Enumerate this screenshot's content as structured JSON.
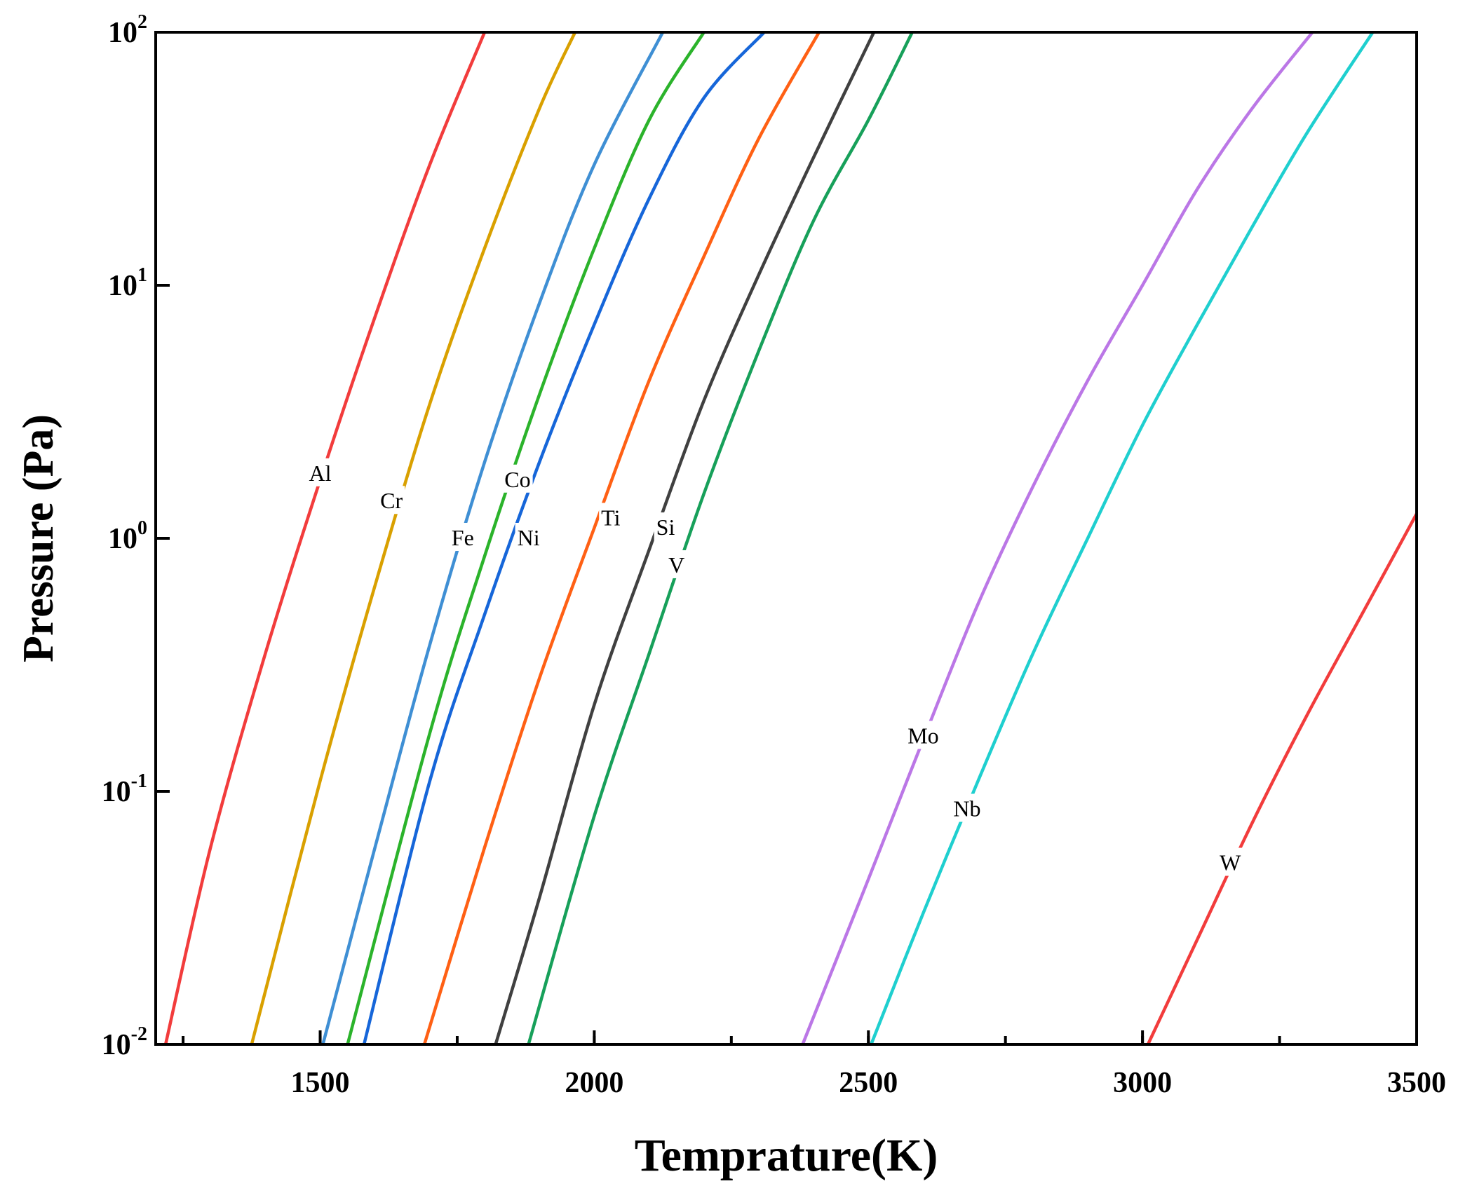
{
  "chart_data": {
    "type": "line",
    "title": "",
    "xlabel": "Temprature(K)",
    "ylabel": "Pressure (Pa)",
    "x_scale": "linear",
    "y_scale": "log",
    "xlim": [
      1200,
      3500
    ],
    "ylim": [
      0.01,
      100
    ],
    "x_ticks": [
      {
        "value": 1500,
        "label": "1500"
      },
      {
        "value": 2000,
        "label": "2000"
      },
      {
        "value": 2500,
        "label": "2500"
      },
      {
        "value": 3000,
        "label": "3000"
      },
      {
        "value": 3500,
        "label": "3500"
      }
    ],
    "y_ticks": [
      {
        "value": 0.01,
        "base": "10",
        "exp": "-2"
      },
      {
        "value": 0.1,
        "base": "10",
        "exp": "-1"
      },
      {
        "value": 1,
        "base": "10",
        "exp": "0"
      },
      {
        "value": 10,
        "base": "10",
        "exp": "1"
      },
      {
        "value": 100,
        "base": "10",
        "exp": "2"
      }
    ],
    "grid": false,
    "legend": "inline labels on curves",
    "series": [
      {
        "name": "Al",
        "color": "#f23c3c",
        "label_at": [
          1500,
          1.8
        ],
        "points": [
          [
            1218,
            0.01
          ],
          [
            1300,
            0.06
          ],
          [
            1400,
            0.35
          ],
          [
            1500,
            1.7
          ],
          [
            1600,
            7.5
          ],
          [
            1700,
            30
          ],
          [
            1800,
            100
          ]
        ]
      },
      {
        "name": "Cr",
        "color": "#d9a000",
        "label_at": [
          1630,
          1.4
        ],
        "points": [
          [
            1375,
            0.01
          ],
          [
            1500,
            0.11
          ],
          [
            1600,
            0.65
          ],
          [
            1700,
            3.4
          ],
          [
            1800,
            14
          ],
          [
            1900,
            50
          ],
          [
            1965,
            100
          ]
        ]
      },
      {
        "name": "Fe",
        "color": "#3f8fd4",
        "label_at": [
          1760,
          1.0
        ],
        "points": [
          [
            1505,
            0.01
          ],
          [
            1600,
            0.06
          ],
          [
            1700,
            0.38
          ],
          [
            1800,
            2
          ],
          [
            1900,
            8.5
          ],
          [
            2000,
            30
          ],
          [
            2125,
            100
          ]
        ]
      },
      {
        "name": "Co",
        "color": "#2bb32b",
        "label_at": [
          1860,
          1.7
        ],
        "points": [
          [
            1550,
            0.01
          ],
          [
            1700,
            0.17
          ],
          [
            1800,
            0.85
          ],
          [
            1900,
            3.7
          ],
          [
            2000,
            14
          ],
          [
            2100,
            45
          ],
          [
            2200,
            100
          ]
        ]
      },
      {
        "name": "Ni",
        "color": "#1666d9",
        "label_at": [
          1880,
          1.0
        ],
        "points": [
          [
            1580,
            0.01
          ],
          [
            1700,
            0.11
          ],
          [
            1800,
            0.5
          ],
          [
            1900,
            2
          ],
          [
            2000,
            7
          ],
          [
            2100,
            22
          ],
          [
            2200,
            55
          ],
          [
            2310,
            100
          ]
        ]
      },
      {
        "name": "Ti",
        "color": "#ff6014",
        "label_at": [
          2030,
          1.2
        ],
        "points": [
          [
            1690,
            0.01
          ],
          [
            1800,
            0.06
          ],
          [
            1900,
            0.28
          ],
          [
            2000,
            1.1
          ],
          [
            2100,
            4.2
          ],
          [
            2200,
            13
          ],
          [
            2300,
            38
          ],
          [
            2410,
            100
          ]
        ]
      },
      {
        "name": "Si",
        "color": "#404040",
        "label_at": [
          2130,
          1.1
        ],
        "points": [
          [
            1820,
            0.01
          ],
          [
            1900,
            0.038
          ],
          [
            2000,
            0.22
          ],
          [
            2100,
            0.9
          ],
          [
            2200,
            3.5
          ],
          [
            2300,
            11
          ],
          [
            2400,
            32
          ],
          [
            2510,
            100
          ]
        ]
      },
      {
        "name": "V",
        "color": "#17a05a",
        "label_at": [
          2150,
          0.78
        ],
        "points": [
          [
            1880,
            0.01
          ],
          [
            2000,
            0.08
          ],
          [
            2100,
            0.35
          ],
          [
            2200,
            1.5
          ],
          [
            2300,
            5.5
          ],
          [
            2400,
            18
          ],
          [
            2500,
            45
          ],
          [
            2580,
            100
          ]
        ]
      },
      {
        "name": "Mo",
        "color": "#bb77e6",
        "label_at": [
          2600,
          0.165
        ],
        "points": [
          [
            2380,
            0.01
          ],
          [
            2500,
            0.045
          ],
          [
            2600,
            0.16
          ],
          [
            2700,
            0.55
          ],
          [
            2800,
            1.6
          ],
          [
            2900,
            4.2
          ],
          [
            3000,
            10
          ],
          [
            3100,
            24
          ],
          [
            3200,
            50
          ],
          [
            3310,
            100
          ]
        ]
      },
      {
        "name": "Nb",
        "color": "#1fcfcf",
        "label_at": [
          2680,
          0.085
        ],
        "points": [
          [
            2505,
            0.01
          ],
          [
            2600,
            0.033
          ],
          [
            2700,
            0.11
          ],
          [
            2800,
            0.35
          ],
          [
            2900,
            1
          ],
          [
            3000,
            2.8
          ],
          [
            3100,
            7
          ],
          [
            3200,
            17
          ],
          [
            3300,
            40
          ],
          [
            3420,
            100
          ]
        ]
      },
      {
        "name": "W",
        "color": "#f23c3c",
        "label_at": [
          3160,
          0.052
        ],
        "points": [
          [
            3010,
            0.01
          ],
          [
            3100,
            0.026
          ],
          [
            3200,
            0.075
          ],
          [
            3300,
            0.2
          ],
          [
            3400,
            0.5
          ],
          [
            3500,
            1.25
          ]
        ]
      }
    ]
  }
}
